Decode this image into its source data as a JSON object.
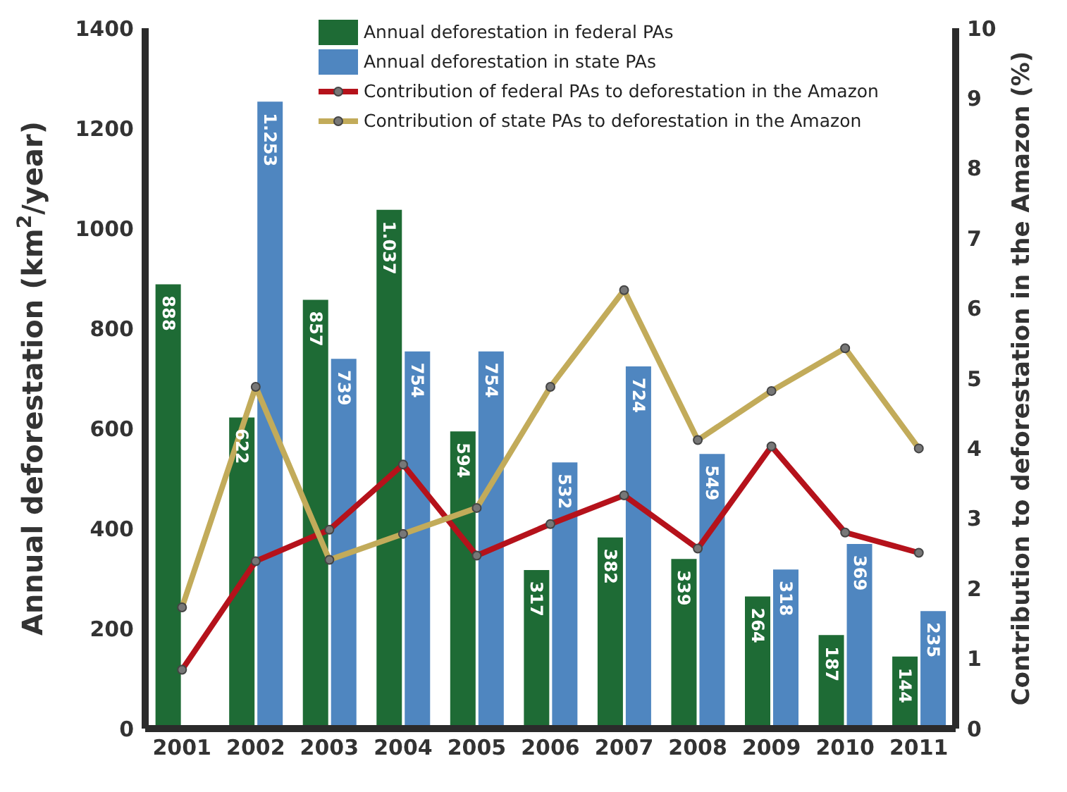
{
  "chart_data": {
    "type": "bar",
    "categories": [
      "2001",
      "2002",
      "2003",
      "2004",
      "2005",
      "2006",
      "2007",
      "2008",
      "2009",
      "2010",
      "2011"
    ],
    "ylabel": "Annual deforestation (km$^{2}$/year)",
    "y2label": "Contribution to deforestation in the Amazon (%)",
    "ylim": [
      0,
      1400
    ],
    "yticks": [
      0,
      200,
      400,
      600,
      800,
      1000,
      1200,
      1400
    ],
    "y2lim": [
      0,
      10
    ],
    "y2ticks": [
      0,
      1,
      2,
      3,
      4,
      5,
      6,
      7,
      8,
      9,
      10
    ],
    "grid": false,
    "legend": "top",
    "marker": "circle",
    "series": [
      {
        "name": "Annual deforestation in federal PAs",
        "color": "#1e6b35",
        "values": [
          888,
          622,
          857,
          1037,
          594,
          317,
          382,
          339,
          264,
          187,
          144
        ],
        "value_labels": [
          "888",
          "622",
          "857",
          "1.037",
          "594",
          "317",
          "382",
          "339",
          "264",
          "187",
          "144"
        ]
      },
      {
        "name": "Annual deforestation in state PAs",
        "color": "#4f86c0",
        "values": [
          null,
          1253,
          739,
          754,
          754,
          532,
          724,
          549,
          318,
          369,
          235
        ],
        "value_labels": [
          null,
          "1.253",
          "739",
          "754",
          "754",
          "532",
          "724",
          "549",
          "318",
          "369",
          "235"
        ]
      },
      {
        "name": "Contribution of federal PAs to deforestation in the Amazon",
        "type": "line",
        "axis": "y2",
        "color": "#b5121b",
        "values": [
          0.84,
          2.39,
          2.84,
          3.77,
          2.47,
          2.92,
          3.33,
          2.57,
          4.03,
          2.8,
          2.51
        ]
      },
      {
        "name": "Contribution of state PAs to deforestation in the Amazon",
        "type": "line",
        "axis": "y2",
        "color": "#c2ab5a",
        "values": [
          1.73,
          4.88,
          2.41,
          2.78,
          3.15,
          4.88,
          6.26,
          4.12,
          4.82,
          5.43,
          4.0
        ]
      }
    ]
  }
}
